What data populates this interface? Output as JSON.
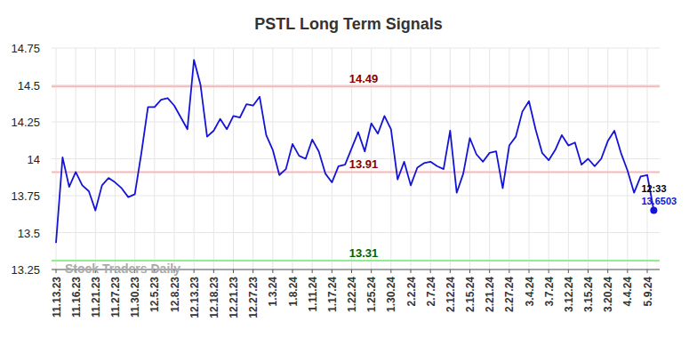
{
  "chart_data": {
    "type": "line",
    "title": "PSTL Long Term Signals",
    "watermark": "Stock Traders Daily",
    "last_time_label": "12:33",
    "color": "#1414d8",
    "grid": true,
    "ylim": [
      13.25,
      14.75
    ],
    "yticks": [
      13.25,
      13.5,
      13.75,
      14,
      14.25,
      14.5,
      14.75
    ],
    "reference_lines": [
      {
        "value": 14.49,
        "color": "#8b0000"
      },
      {
        "value": 13.91,
        "color": "#8b0000"
      },
      {
        "value": 13.31,
        "color": "#006400"
      }
    ],
    "categories": [
      "11.13.23",
      null,
      null,
      "11.16.23",
      null,
      null,
      "11.21.23",
      null,
      null,
      "11.27.23",
      null,
      null,
      "11.30.23",
      null,
      null,
      "12.5.23",
      null,
      null,
      "12.8.23",
      null,
      null,
      "12.13.23",
      null,
      null,
      "12.18.23",
      null,
      null,
      "12.21.23",
      null,
      null,
      "12.27.23",
      null,
      null,
      "1.3.24",
      null,
      null,
      "1.8.24",
      null,
      null,
      "1.11.24",
      null,
      null,
      "1.17.24",
      null,
      null,
      "1.22.24",
      null,
      null,
      "1.25.24",
      null,
      null,
      "1.30.24",
      null,
      null,
      "2.2.24",
      null,
      null,
      "2.7.24",
      null,
      null,
      "2.12.24",
      null,
      null,
      "2.15.24",
      null,
      null,
      "2.21.24",
      null,
      null,
      "2.27.24",
      null,
      null,
      "3.4.24",
      null,
      null,
      "3.7.24",
      null,
      null,
      "3.12.24",
      null,
      null,
      "3.15.24",
      null,
      null,
      "3.20.24",
      null,
      null,
      "4.4.24",
      null,
      null,
      "5.9.24",
      null
    ],
    "values": [
      13.43,
      14.01,
      13.81,
      13.91,
      13.82,
      13.78,
      13.65,
      13.82,
      13.87,
      13.84,
      13.8,
      13.74,
      13.76,
      14.04,
      14.35,
      14.35,
      14.4,
      14.41,
      14.36,
      14.28,
      14.2,
      14.67,
      14.5,
      14.15,
      14.19,
      14.27,
      14.2,
      14.29,
      14.28,
      14.37,
      14.36,
      14.42,
      14.16,
      14.06,
      13.89,
      13.93,
      14.1,
      14.02,
      14.0,
      14.13,
      14.05,
      13.9,
      13.84,
      13.95,
      13.96,
      14.07,
      14.18,
      14.05,
      14.24,
      14.17,
      14.29,
      14.2,
      13.86,
      13.98,
      13.82,
      13.94,
      13.97,
      13.98,
      13.95,
      13.93,
      14.19,
      13.77,
      13.9,
      14.14,
      14.03,
      13.98,
      14.04,
      14.05,
      13.8,
      14.09,
      14.15,
      14.32,
      14.39,
      14.2,
      14.04,
      13.99,
      14.06,
      14.16,
      14.09,
      14.11,
      13.96,
      14.0,
      13.95,
      14.0,
      14.12,
      14.19,
      14.04,
      13.92,
      13.77,
      13.88,
      13.89,
      13.6503
    ]
  }
}
